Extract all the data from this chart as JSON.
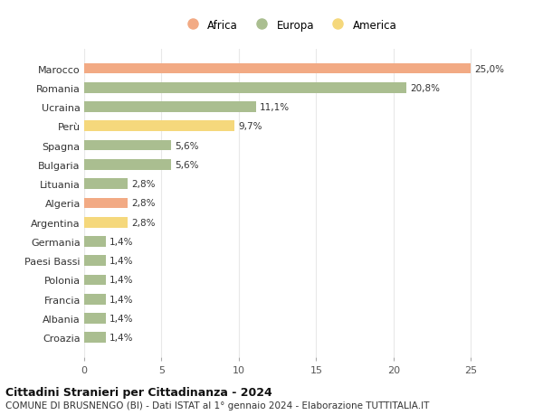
{
  "countries": [
    "Marocco",
    "Romania",
    "Ucraina",
    "Perù",
    "Spagna",
    "Bulgaria",
    "Lituania",
    "Algeria",
    "Argentina",
    "Germania",
    "Paesi Bassi",
    "Polonia",
    "Francia",
    "Albania",
    "Croazia"
  ],
  "values": [
    25.0,
    20.8,
    11.1,
    9.7,
    5.6,
    5.6,
    2.8,
    2.8,
    2.8,
    1.4,
    1.4,
    1.4,
    1.4,
    1.4,
    1.4
  ],
  "labels": [
    "25,0%",
    "20,8%",
    "11,1%",
    "9,7%",
    "5,6%",
    "5,6%",
    "2,8%",
    "2,8%",
    "2,8%",
    "1,4%",
    "1,4%",
    "1,4%",
    "1,4%",
    "1,4%",
    "1,4%"
  ],
  "continent": [
    "Africa",
    "Europa",
    "Europa",
    "America",
    "Europa",
    "Europa",
    "Europa",
    "Africa",
    "America",
    "Europa",
    "Europa",
    "Europa",
    "Europa",
    "Europa",
    "Europa"
  ],
  "colors": {
    "Africa": "#F2AA84",
    "Europa": "#AABE90",
    "America": "#F5D87C"
  },
  "title": "Cittadini Stranieri per Cittadinanza - 2024",
  "subtitle": "COMUNE DI BRUSNENGO (BI) - Dati ISTAT al 1° gennaio 2024 - Elaborazione TUTTITALIA.IT",
  "xlim": [
    0,
    26.5
  ],
  "xticks": [
    0,
    5,
    10,
    15,
    20,
    25
  ],
  "background_color": "#ffffff",
  "grid_color": "#e8e8e8",
  "bar_height": 0.55,
  "label_fontsize": 7.5,
  "tick_fontsize": 8,
  "title_fontsize": 9,
  "subtitle_fontsize": 7.5
}
